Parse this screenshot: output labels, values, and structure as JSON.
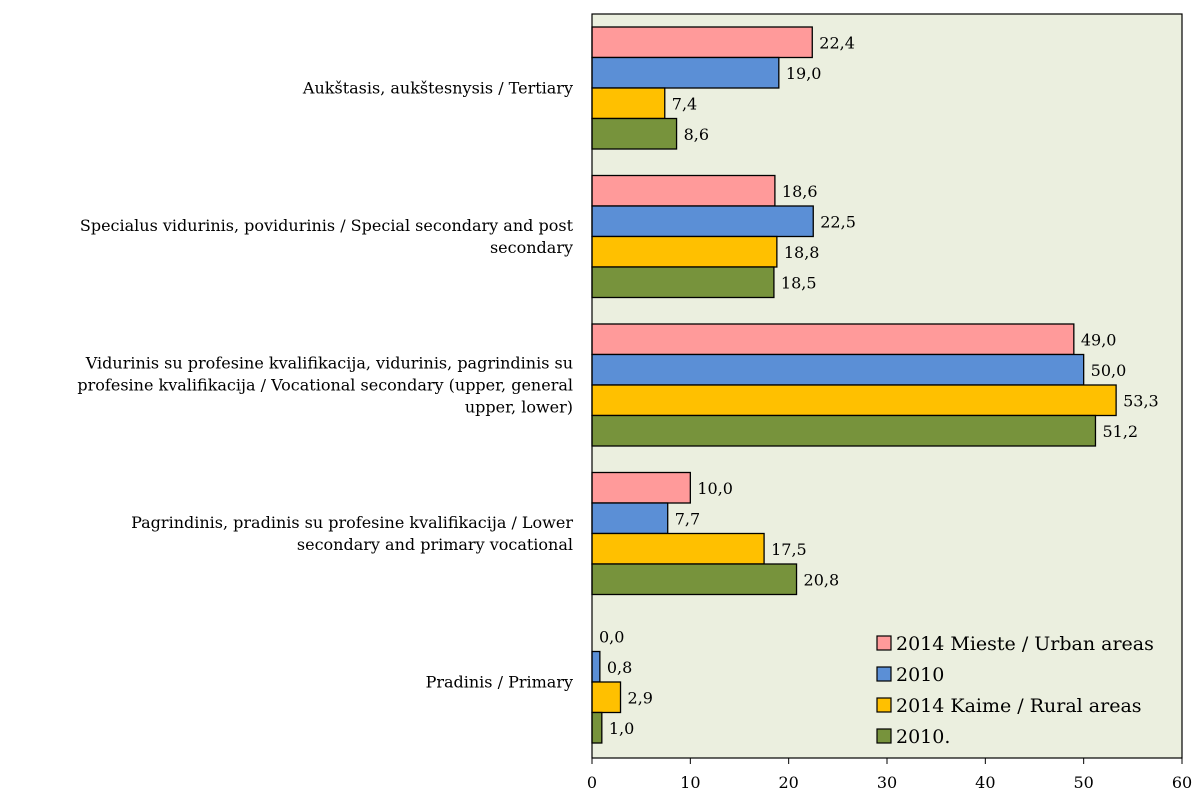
{
  "chart_data": {
    "type": "bar",
    "orientation": "horizontal",
    "categories": [
      [
        "Aukštasis, aukštesnysis / Tertiary"
      ],
      [
        "Specialus vidurinis, povidurinis / Special secondary and post",
        "secondary"
      ],
      [
        "Vidurinis su profesine kvalifikacija, vidurinis, pagrindinis su",
        "profesine kvalifikacija / Vocational secondary (upper, general",
        "upper, lower)"
      ],
      [
        "Pagrindinis, pradinis su profesine kvalifikacija / Lower",
        "secondary and primary vocational"
      ],
      [
        "Pradinis / Primary"
      ]
    ],
    "series": [
      {
        "name": "2014 Mieste / Urban areas",
        "color": "#ff9a9a",
        "values": [
          22.4,
          18.6,
          49.0,
          10.0,
          0.0
        ],
        "labels": [
          "22,4",
          "18,6",
          "49,0",
          "10,0",
          "0,0"
        ]
      },
      {
        "name": "2010",
        "color": "#5b8fd6",
        "values": [
          19.0,
          22.5,
          50.0,
          7.7,
          0.8
        ],
        "labels": [
          "19,0",
          "22,5",
          "50,0",
          "7,7",
          "0,8"
        ]
      },
      {
        "name": "2014 Kaime / Rural areas",
        "color": "#ffc000",
        "values": [
          7.4,
          18.8,
          53.3,
          17.5,
          2.9
        ],
        "labels": [
          "7,4",
          "18,8",
          "53,3",
          "17,5",
          "2,9"
        ]
      },
      {
        "name": "2010.",
        "color": "#77933c",
        "values": [
          8.6,
          18.5,
          51.2,
          20.8,
          1.0
        ],
        "labels": [
          "8,6",
          "18,5",
          "51,2",
          "20,8",
          "1,0"
        ]
      }
    ],
    "xlim": [
      0,
      60
    ],
    "xticks": [
      0,
      10,
      20,
      30,
      40,
      50,
      60
    ],
    "plot_background": "#ebefdf",
    "grid": false,
    "legend_position": "bottom-right"
  }
}
